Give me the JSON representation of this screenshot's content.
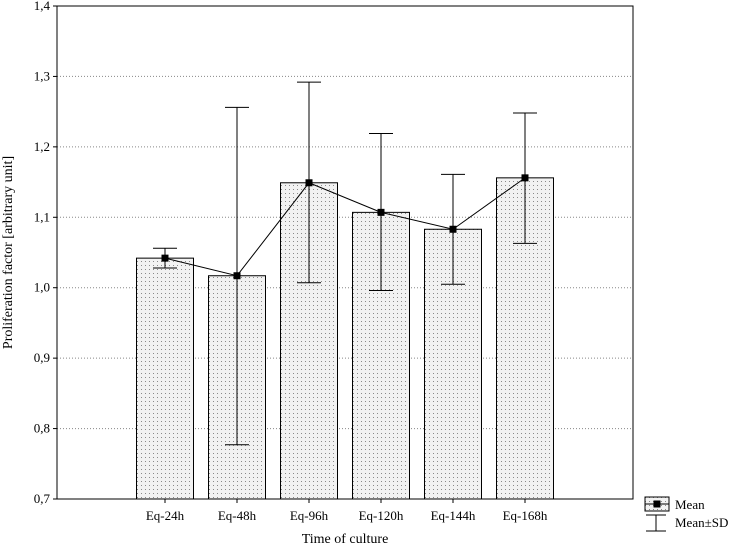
{
  "chart_data": {
    "type": "bar",
    "title": "",
    "xlabel": "Time of culture",
    "ylabel": "Proliferation factor [arbitrary unit]",
    "ylim": [
      0.7,
      1.4
    ],
    "yticks": [
      "0,7",
      "0,8",
      "0,9",
      "1,0",
      "1,1",
      "1,2",
      "1,3",
      "1,4"
    ],
    "categories": [
      "Eq-24h",
      "Eq-48h",
      "Eq-96h",
      "Eq-120h",
      "Eq-144h",
      "Eq-168h"
    ],
    "series": [
      {
        "name": "Mean",
        "values": [
          1.042,
          1.017,
          1.149,
          1.107,
          1.083,
          1.156
        ]
      }
    ],
    "sd_lower": [
      1.028,
      0.777,
      1.007,
      0.996,
      1.005,
      1.063
    ],
    "sd_upper": [
      1.056,
      1.256,
      1.292,
      1.219,
      1.161,
      1.248
    ],
    "grid": true,
    "legend_position": "bottom-right",
    "legend": [
      {
        "label": "Mean",
        "marker": "square-dot-pattern"
      },
      {
        "label": "Mean±SD",
        "marker": "whisker"
      }
    ],
    "colors": {
      "bar_fill": "#f2f2f2",
      "bar_dots": "#8a8a8a",
      "line": "#000000",
      "grid": "#888888"
    }
  }
}
